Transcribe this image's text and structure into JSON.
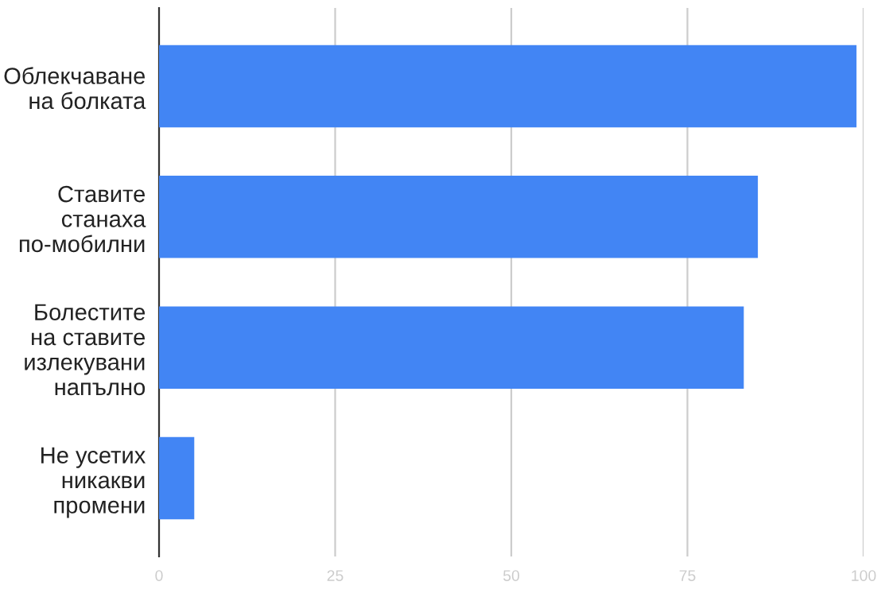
{
  "chart_data": {
    "type": "bar",
    "orientation": "horizontal",
    "categories": [
      "Облекчаване\nна болката",
      "Ставите\nстанаха\nпо-мобилни",
      "Болестите\nна ставите\nизлекувани\nнапълно",
      "Не усетих\nникакви\nпромени"
    ],
    "values": [
      99,
      85,
      83,
      5
    ],
    "color": "#4285f4",
    "xlim": [
      0,
      100
    ],
    "xticks": [
      0,
      25,
      50,
      75,
      100
    ],
    "grid": "x"
  }
}
